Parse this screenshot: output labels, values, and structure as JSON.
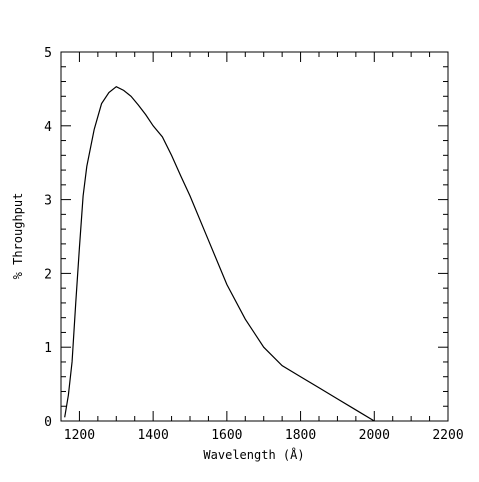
{
  "chart_data": {
    "type": "line",
    "title": "",
    "xlabel": "Wavelength (Å)",
    "ylabel": "% Throughput",
    "xlim": [
      1150,
      2200
    ],
    "ylim": [
      0,
      5
    ],
    "x_ticks": [
      1200,
      1400,
      1600,
      1800,
      2000,
      2200
    ],
    "y_ticks": [
      0,
      1,
      2,
      3,
      4,
      5
    ],
    "x_tick_labels": [
      "1200",
      "1400",
      "1600",
      "1800",
      "2000",
      "2200"
    ],
    "y_tick_labels": [
      "0",
      "1",
      "2",
      "3",
      "4",
      "5"
    ],
    "grid": false,
    "legend": "none",
    "series": [
      {
        "x": [
          1160,
          1170,
          1180,
          1190,
          1200,
          1210,
          1220,
          1240,
          1260,
          1280,
          1300,
          1320,
          1340,
          1360,
          1380,
          1400,
          1425,
          1450,
          1475,
          1500,
          1550,
          1600,
          1650,
          1700,
          1750,
          1800,
          1850,
          1900,
          1950,
          2000
        ],
        "y": [
          0.05,
          0.35,
          0.8,
          1.6,
          2.35,
          3.05,
          3.45,
          3.95,
          4.3,
          4.45,
          4.53,
          4.48,
          4.4,
          4.28,
          4.15,
          4.0,
          3.85,
          3.6,
          3.32,
          3.05,
          2.45,
          1.85,
          1.38,
          1.0,
          0.75,
          0.6,
          0.45,
          0.3,
          0.15,
          0.0
        ],
        "color": "#000000"
      }
    ]
  }
}
